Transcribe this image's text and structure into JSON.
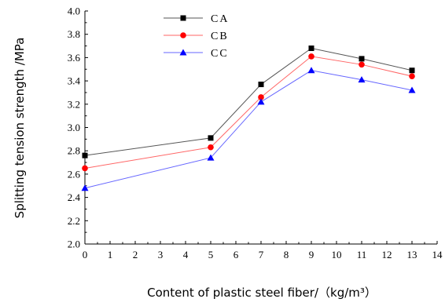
{
  "chart_data": {
    "type": "line",
    "xlabel": "Content of plastic steel fiber/（kg/m³）",
    "ylabel": "Splitting tension strength /MPa",
    "xlim": [
      0,
      14
    ],
    "ylim": [
      2.0,
      4.0
    ],
    "x_ticks": [
      "0",
      "1",
      "2",
      "3",
      "4",
      "5",
      "6",
      "7",
      "8",
      "9",
      "10",
      "11",
      "12",
      "13",
      "14"
    ],
    "y_ticks": [
      "2.0",
      "2.2",
      "2.4",
      "2.6",
      "2.8",
      "3.0",
      "3.2",
      "3.4",
      "3.6",
      "3.8",
      "4.0"
    ],
    "grid": false,
    "legend_position": "top-left",
    "x": [
      0,
      5,
      7,
      9,
      11,
      13
    ],
    "series": [
      {
        "name": "CA",
        "values": [
          2.76,
          2.91,
          3.37,
          3.68,
          3.59,
          3.49
        ],
        "color": "#555555",
        "marker": "square",
        "marker_color": "#000000"
      },
      {
        "name": "CB",
        "values": [
          2.65,
          2.83,
          3.26,
          3.61,
          3.54,
          3.44
        ],
        "color": "#ff6666",
        "marker": "circle",
        "marker_color": "#ff0000"
      },
      {
        "name": "CC",
        "values": [
          2.48,
          2.74,
          3.22,
          3.49,
          3.41,
          3.32
        ],
        "color": "#6666ff",
        "marker": "triangle",
        "marker_color": "#0000ff"
      }
    ]
  }
}
